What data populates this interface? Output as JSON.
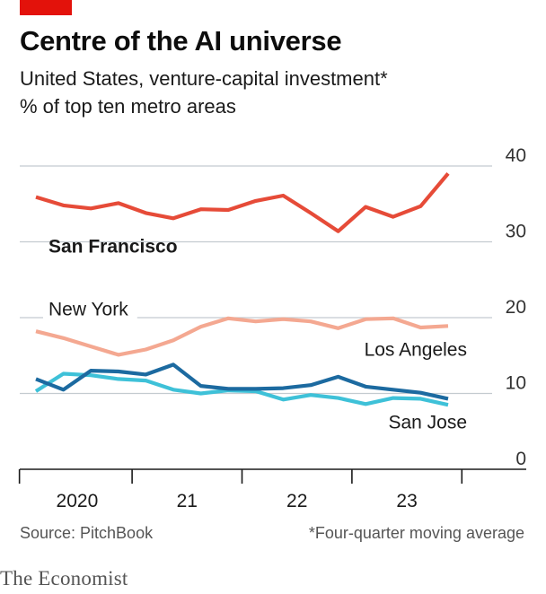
{
  "header": {
    "title": "Centre of the AI universe",
    "subtitle_line1": "United States, venture-capital investment*",
    "subtitle_line2": "% of top ten metro areas"
  },
  "footer": {
    "source": "Source: PitchBook",
    "footnote": "*Four-quarter moving average",
    "brand": "The Economist"
  },
  "colors": {
    "brand_red": "#e3120b",
    "san_francisco": "#e64b38",
    "new_york": "#f4a891",
    "los_angeles": "#1c6aa0",
    "san_jose": "#3ec1d8",
    "grid": "#c4cbd0"
  },
  "chart_data": {
    "type": "line",
    "x": [
      "2019-Q4",
      "2020-Q1",
      "2020-Q2",
      "2020-Q3",
      "2020-Q4",
      "2021-Q1",
      "2021-Q2",
      "2021-Q3",
      "2021-Q4",
      "2022-Q1",
      "2022-Q2",
      "2022-Q3",
      "2022-Q4",
      "2023-Q1",
      "2023-Q2",
      "2023-Q3",
      "2023-Q4"
    ],
    "x_ticks": [
      "2020",
      "21",
      "22",
      "23"
    ],
    "ylim": [
      0,
      40
    ],
    "y_ticks": [
      "0",
      "10",
      "20",
      "30",
      "40"
    ],
    "grid": "horizontal",
    "series": [
      {
        "name": "San Francisco",
        "key": "sf",
        "values": [
          35.9,
          34.8,
          34.4,
          35.1,
          33.8,
          33.1,
          34.3,
          34.2,
          35.4,
          36.1,
          33.8,
          31.4,
          34.6,
          33.3,
          34.7,
          39.0,
          null
        ]
      },
      {
        "name": "New York",
        "key": "ny",
        "values": [
          18.2,
          17.3,
          16.2,
          15.1,
          15.8,
          17.0,
          18.8,
          19.9,
          19.5,
          19.8,
          19.5,
          18.6,
          19.8,
          19.9,
          18.7,
          18.9,
          null
        ]
      },
      {
        "name": "Los Angeles",
        "key": "la",
        "values": [
          11.9,
          10.5,
          13.0,
          12.9,
          12.5,
          13.8,
          11.0,
          10.6,
          10.6,
          10.7,
          11.1,
          12.2,
          10.9,
          10.5,
          10.1,
          9.3,
          null
        ]
      },
      {
        "name": "San Jose",
        "key": "sj",
        "values": [
          10.3,
          12.6,
          12.4,
          11.9,
          11.7,
          10.5,
          10.0,
          10.4,
          10.3,
          9.2,
          9.8,
          9.4,
          8.6,
          9.4,
          9.3,
          8.5,
          null
        ]
      }
    ]
  }
}
